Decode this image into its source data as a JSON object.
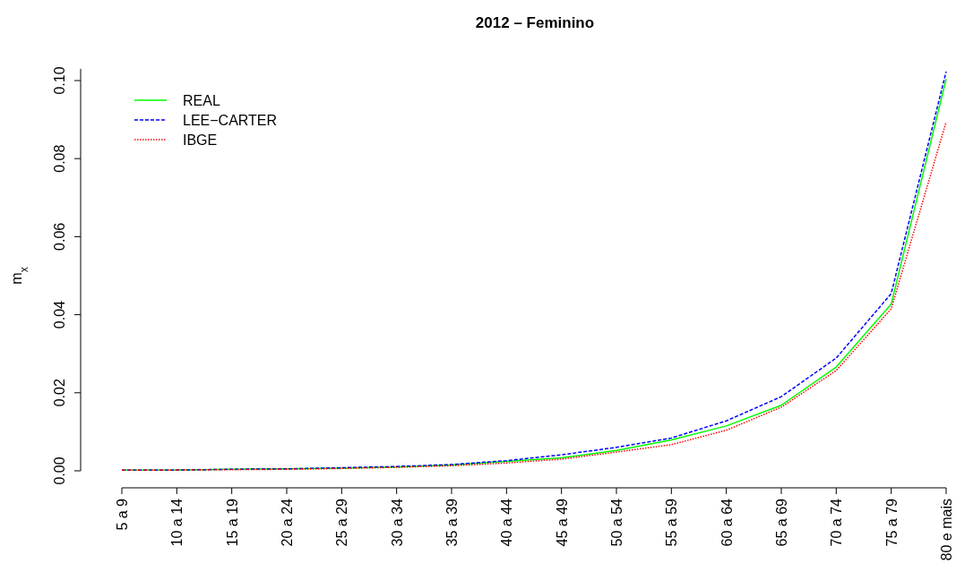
{
  "chart_data": {
    "type": "line",
    "title": "2012 – Feminino",
    "ylabel": "m$_{x}$",
    "categories": [
      "5 a 9",
      "10 a 14",
      "15 a 19",
      "20 a 24",
      "25 a 29",
      "30 a 34",
      "35 a 39",
      "40 a 44",
      "45 a 49",
      "50 a 54",
      "55 a 59",
      "60 a 64",
      "65 a 69",
      "70 a 74",
      "75 a 79",
      "80 e mais"
    ],
    "series": [
      {
        "name": "REAL",
        "color": "#00ff00",
        "line_style": "solid",
        "values": [
          0.0002,
          0.0002,
          0.0004,
          0.0005,
          0.0007,
          0.001,
          0.0015,
          0.0024,
          0.0033,
          0.0052,
          0.0079,
          0.0115,
          0.0168,
          0.0266,
          0.0427,
          0.1004
        ]
      },
      {
        "name": "LEE−CARTER",
        "color": "#0000ff",
        "line_style": "dashed",
        "values": [
          0.0002,
          0.0002,
          0.0004,
          0.0005,
          0.0008,
          0.0011,
          0.0016,
          0.0026,
          0.0041,
          0.006,
          0.0084,
          0.0128,
          0.019,
          0.0289,
          0.0454,
          0.1023
        ]
      },
      {
        "name": "IBGE",
        "color": "#ff0000",
        "line_style": "dotted",
        "values": [
          0.0002,
          0.0002,
          0.0003,
          0.0004,
          0.0006,
          0.0009,
          0.0013,
          0.002,
          0.003,
          0.0048,
          0.0067,
          0.0104,
          0.0163,
          0.0257,
          0.0415,
          0.0894
        ]
      }
    ],
    "ylim": [
      0,
      0.103
    ],
    "yticks": [
      {
        "value": 0,
        "label": "0.00"
      },
      {
        "value": 0.02,
        "label": "0.02"
      },
      {
        "value": 0.04,
        "label": "0.04"
      },
      {
        "value": 0.06,
        "label": "0.06"
      },
      {
        "value": 0.08,
        "label": "0.08"
      },
      {
        "value": 0.1,
        "label": "0.10"
      }
    ],
    "grid": false,
    "legend": "top left"
  }
}
